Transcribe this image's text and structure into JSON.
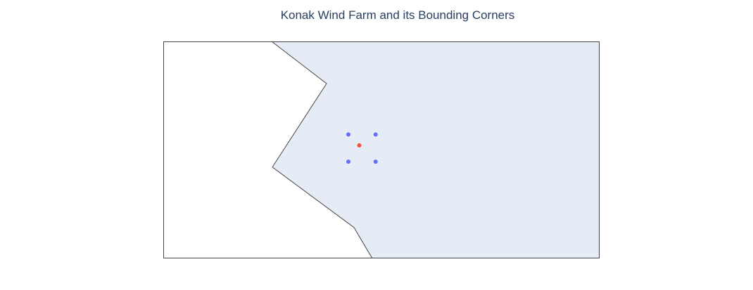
{
  "title": "Konak Wind Farm and its Bounding Corners",
  "colors": {
    "land": "#ffffff",
    "water": "#e5ecf6",
    "coastline": "#444444",
    "frame": "#444444",
    "wind_farm_marker": "#ef553b",
    "corner_marker": "#636efa"
  },
  "map_data": {
    "type": "scattergeo",
    "projection": "equirectangular",
    "series": [
      {
        "role": "wind_farm",
        "points": [
          {
            "lon": 0.0,
            "lat": 0.0
          }
        ]
      },
      {
        "role": "bounding_corners",
        "points": [
          {
            "lon": -0.5,
            "lat": 0.5
          },
          {
            "lon": 0.75,
            "lat": 0.5
          },
          {
            "lon": -0.5,
            "lat": -0.75
          },
          {
            "lon": 0.75,
            "lat": -0.75
          }
        ]
      }
    ]
  }
}
